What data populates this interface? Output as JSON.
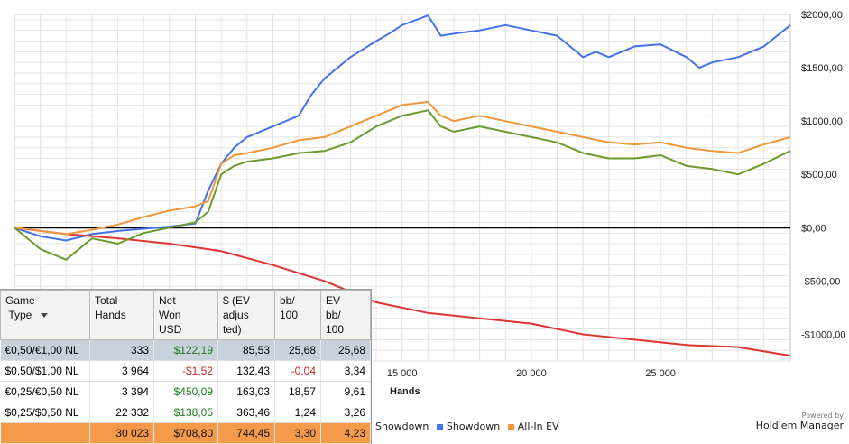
{
  "chart_data": {
    "type": "line",
    "title": "",
    "xlabel": "Hands",
    "ylabel": "",
    "xlim": [
      0,
      30023
    ],
    "ylim": [
      -1250,
      2000
    ],
    "x_ticks": [
      15000,
      20000,
      25000
    ],
    "x_tick_labels": [
      "15 000",
      "20 000",
      "25 000"
    ],
    "y_ticks": [
      -1000,
      -500,
      0,
      500,
      1000,
      1500,
      2000
    ],
    "y_tick_labels": [
      "-$1000,00",
      "-$500,00",
      "$0,00",
      "$500,00",
      "$1000,00",
      "$1500,00",
      "$2000,00"
    ],
    "grid": true,
    "legend_position": "bottom",
    "series": [
      {
        "name": "Showdown",
        "color": "#4472e8",
        "x": [
          0,
          1000,
          2000,
          3000,
          4000,
          5000,
          6000,
          7000,
          7500,
          8000,
          8500,
          9000,
          9500,
          10000,
          11000,
          11500,
          12000,
          13000,
          14000,
          14500,
          15000,
          16000,
          16500,
          17000,
          18000,
          19000,
          20000,
          21000,
          22000,
          22500,
          23000,
          24000,
          25000,
          26000,
          26500,
          27000,
          28000,
          29000,
          30023
        ],
        "y": [
          0,
          -80,
          -120,
          -60,
          -30,
          -10,
          10,
          40,
          350,
          600,
          750,
          850,
          900,
          950,
          1050,
          1250,
          1400,
          1600,
          1750,
          1820,
          1900,
          1990,
          1800,
          1820,
          1850,
          1900,
          1850,
          1800,
          1600,
          1650,
          1600,
          1700,
          1720,
          1600,
          1500,
          1550,
          1600,
          1700,
          1900
        ]
      },
      {
        "name": "",
        "color": "#e03333",
        "x": [
          0,
          2000,
          4000,
          6000,
          8000,
          10000,
          12000,
          14000,
          16000,
          18000,
          20000,
          22000,
          24000,
          26000,
          28000,
          30023
        ],
        "y": [
          0,
          -60,
          -100,
          -150,
          -220,
          -350,
          -500,
          -700,
          -800,
          -850,
          -900,
          -1000,
          -1050,
          -1100,
          -1120,
          -1200
        ]
      },
      {
        "name": "All-In EV",
        "color": "#f0963c",
        "x": [
          0,
          1000,
          2000,
          3000,
          4000,
          5000,
          6000,
          7000,
          7500,
          8000,
          8500,
          9000,
          10000,
          11000,
          12000,
          13000,
          14000,
          15000,
          16000,
          16500,
          17000,
          18000,
          19000,
          20000,
          21000,
          22000,
          23000,
          24000,
          25000,
          26000,
          27000,
          28000,
          29000,
          30023
        ],
        "y": [
          0,
          -30,
          -60,
          -20,
          30,
          100,
          160,
          200,
          250,
          600,
          680,
          700,
          750,
          820,
          850,
          950,
          1050,
          1150,
          1180,
          1050,
          1000,
          1050,
          1000,
          950,
          900,
          850,
          800,
          780,
          800,
          750,
          720,
          700,
          780,
          850
        ]
      },
      {
        "name": "",
        "color": "#6b9a2e",
        "x": [
          0,
          1000,
          2000,
          3000,
          4000,
          5000,
          6000,
          7000,
          7500,
          8000,
          8500,
          9000,
          10000,
          11000,
          12000,
          13000,
          14000,
          15000,
          16000,
          16500,
          17000,
          18000,
          19000,
          20000,
          21000,
          22000,
          23000,
          24000,
          25000,
          26000,
          27000,
          28000,
          29000,
          30023
        ],
        "y": [
          0,
          -200,
          -300,
          -100,
          -150,
          -50,
          0,
          50,
          150,
          500,
          580,
          620,
          650,
          700,
          720,
          800,
          950,
          1050,
          1100,
          950,
          900,
          950,
          900,
          850,
          800,
          700,
          650,
          650,
          680,
          580,
          550,
          500,
          600,
          720
        ]
      }
    ]
  },
  "legend_items": [
    "Showdown",
    "Showdown",
    "All-In EV"
  ],
  "brand": {
    "powered_by": "Powered by",
    "name": "Hold'em Manager"
  },
  "table": {
    "headers": [
      "Game\nType",
      "Total\nHands",
      "Net\nWon\nUSD",
      "$ (EV\nadjus\nted)",
      "bb/\n100",
      "EV\nbb/\n100"
    ],
    "rows": [
      [
        "€0,50/€1,00 NL",
        "333",
        "$122,19",
        "85,53",
        "25,68",
        "25,68"
      ],
      [
        "$0,50/$1,00 NL",
        "3 964",
        "-$1,52",
        "132,43",
        "-0,04",
        "3,34"
      ],
      [
        "€0,25/€0,50 NL",
        "3 394",
        "$450,09",
        "163,03",
        "18,57",
        "9,61"
      ],
      [
        "$0,25/$0,50 NL",
        "22 332",
        "$138,05",
        "363,46",
        "1,24",
        "3,26"
      ]
    ],
    "total": [
      "",
      "30 023",
      "$708,80",
      "744,45",
      "3,30",
      "4,23"
    ]
  }
}
